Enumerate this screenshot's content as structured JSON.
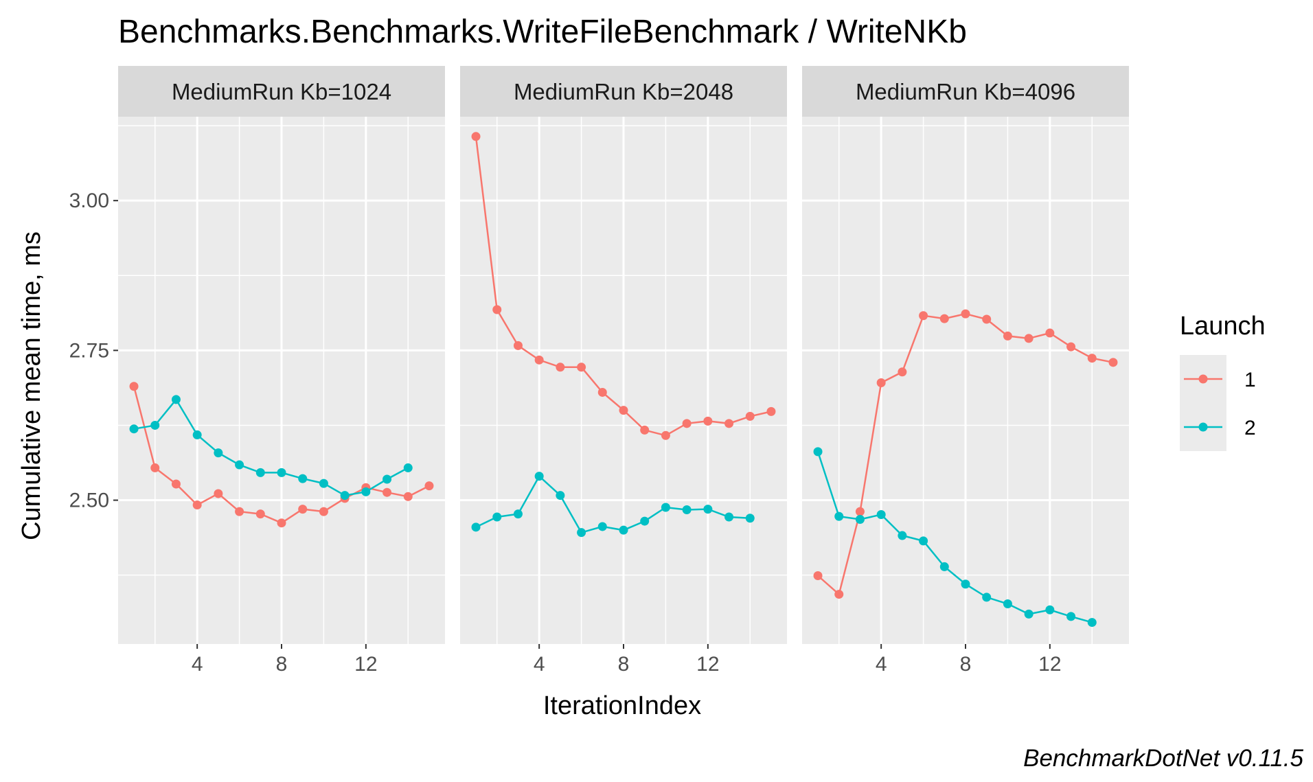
{
  "chart_data": {
    "type": "line",
    "title": "Benchmarks.Benchmarks.WriteFileBenchmark / WriteNKb",
    "xlabel": "IterationIndex",
    "ylabel": "Cumulative mean time, ms",
    "caption": "BenchmarkDotNet v0.11.5",
    "x_ticks": [
      4,
      8,
      12
    ],
    "y_ticks": [
      2.5,
      2.75,
      3.0
    ],
    "y_tick_labels": [
      "2.50",
      "2.75",
      "3.00"
    ],
    "xlim": [
      0.25,
      15.75
    ],
    "ylim": [
      2.26,
      3.14
    ],
    "grid": true,
    "legend": {
      "title": "Launch",
      "position": "right",
      "entries": [
        {
          "label": "1",
          "color": "#F8766D"
        },
        {
          "label": "2",
          "color": "#00BFC4"
        }
      ]
    },
    "panels": [
      {
        "label": "MediumRun Kb=1024",
        "series": [
          {
            "name": "1",
            "color": "#F8766D",
            "x": [
              1,
              2,
              3,
              4,
              5,
              6,
              7,
              8,
              9,
              10,
              11,
              12,
              13,
              14,
              15
            ],
            "y": [
              2.69,
              2.554,
              2.527,
              2.492,
              2.511,
              2.481,
              2.477,
              2.462,
              2.485,
              2.481,
              2.503,
              2.521,
              2.513,
              2.506,
              2.524
            ]
          },
          {
            "name": "2",
            "color": "#00BFC4",
            "x": [
              1,
              2,
              3,
              4,
              5,
              6,
              7,
              8,
              9,
              10,
              11,
              12,
              13,
              14
            ],
            "y": [
              2.619,
              2.625,
              2.668,
              2.609,
              2.579,
              2.559,
              2.546,
              2.546,
              2.536,
              2.528,
              2.508,
              2.514,
              2.535,
              2.554
            ]
          }
        ]
      },
      {
        "label": "MediumRun Kb=2048",
        "series": [
          {
            "name": "1",
            "color": "#F8766D",
            "x": [
              1,
              2,
              3,
              4,
              5,
              6,
              7,
              8,
              9,
              10,
              11,
              12,
              13,
              14,
              15
            ],
            "y": [
              3.107,
              2.818,
              2.758,
              2.734,
              2.722,
              2.722,
              2.68,
              2.65,
              2.617,
              2.608,
              2.628,
              2.632,
              2.628,
              2.64,
              2.648
            ]
          },
          {
            "name": "2",
            "color": "#00BFC4",
            "x": [
              1,
              2,
              3,
              4,
              5,
              6,
              7,
              8,
              9,
              10,
              11,
              12,
              13,
              14
            ],
            "y": [
              2.455,
              2.472,
              2.477,
              2.54,
              2.508,
              2.446,
              2.456,
              2.45,
              2.465,
              2.488,
              2.484,
              2.485,
              2.472,
              2.47
            ]
          }
        ]
      },
      {
        "label": "MediumRun Kb=4096",
        "series": [
          {
            "name": "1",
            "color": "#F8766D",
            "x": [
              1,
              2,
              3,
              4,
              5,
              6,
              7,
              8,
              9,
              10,
              11,
              12,
              13,
              14,
              15
            ],
            "y": [
              2.374,
              2.343,
              2.481,
              2.696,
              2.714,
              2.808,
              2.803,
              2.811,
              2.802,
              2.774,
              2.77,
              2.779,
              2.756,
              2.737,
              2.73
            ]
          },
          {
            "name": "2",
            "color": "#00BFC4",
            "x": [
              1,
              2,
              3,
              4,
              5,
              6,
              7,
              8,
              9,
              10,
              11,
              12,
              13,
              14
            ],
            "y": [
              2.581,
              2.473,
              2.468,
              2.476,
              2.441,
              2.432,
              2.389,
              2.36,
              2.338,
              2.327,
              2.31,
              2.317,
              2.306,
              2.296
            ]
          }
        ]
      }
    ]
  }
}
